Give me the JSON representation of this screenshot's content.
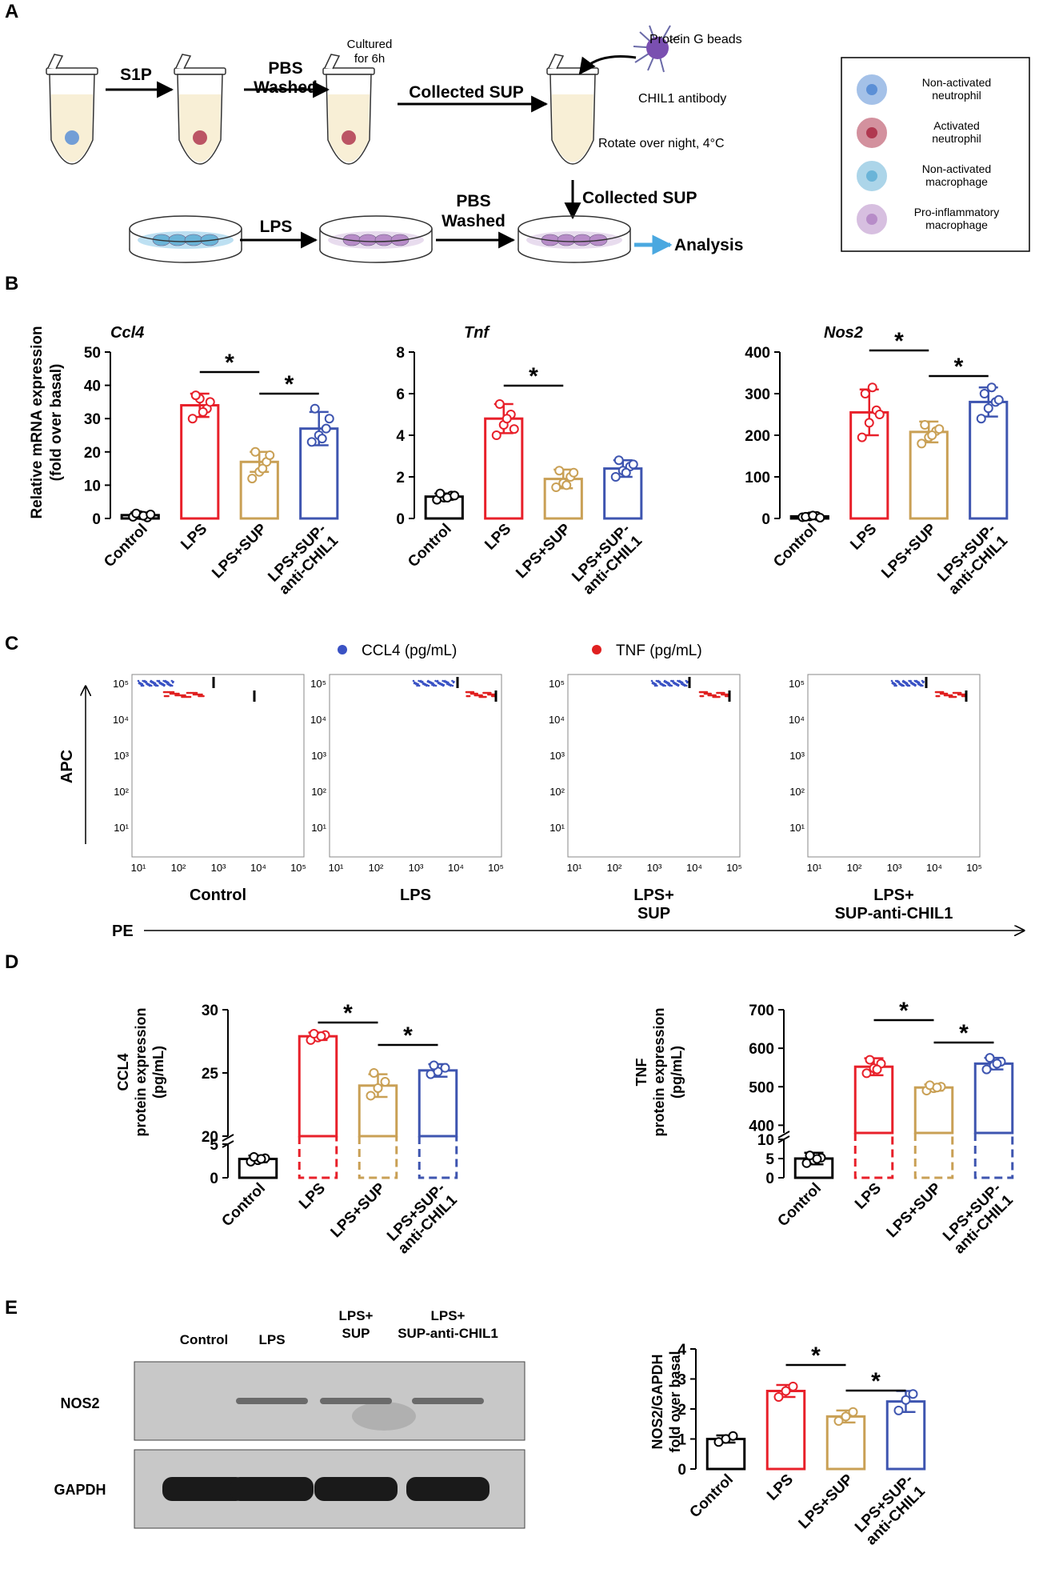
{
  "panels": {
    "A": {
      "letter": "A",
      "steps": {
        "s1p": "S1P",
        "pbs_washed_1a": "PBS",
        "pbs_washed_1b": "Washed",
        "cultured_a": "Cultured",
        "cultured_b": "for 6h",
        "collected_sup_1": "Collected SUP",
        "protein_g_beads": "Protein G beads",
        "chil1_antibody": "CHIL1 antibody",
        "rotate": "Rotate over night, 4°C",
        "collected_sup_2": "Collected SUP",
        "lps": "LPS",
        "pbs_washed_2a": "PBS",
        "pbs_washed_2b": "Washed",
        "analysis": "Analysis"
      },
      "legend": [
        {
          "line1": "Non-activated",
          "line2": "neutrophil",
          "color": "#5b8fd6"
        },
        {
          "line1": "Activated",
          "line2": "neutrophil",
          "color": "#b03850"
        },
        {
          "line1": "Non-activated",
          "line2": "macrophage",
          "color": "#6ab4d8"
        },
        {
          "line1": "Pro-inflammatory",
          "line2": "macrophage",
          "color": "#b78cc8"
        }
      ]
    },
    "B": {
      "letter": "B",
      "y_label_1": "Relative mRNA expression",
      "y_label_2": "(fold over basal)"
    },
    "C": {
      "letter": "C",
      "legend_ccl4": "CCL4 (pg/mL)",
      "legend_tnf": "TNF (pg/mL)",
      "y_axis": "APC",
      "x_axis": "PE",
      "tick_labels": [
        "10⁵",
        "10⁴",
        "10³",
        "10²",
        "10¹"
      ],
      "x_tick_labels": [
        "10¹",
        "10²",
        "10³",
        "10⁴",
        "10⁵"
      ],
      "plot_labels": [
        [
          "Control",
          ""
        ],
        [
          "LPS",
          ""
        ],
        [
          "LPS+",
          "SUP"
        ],
        [
          "LPS+",
          "SUP-anti-CHIL1"
        ]
      ]
    },
    "D": {
      "letter": "D",
      "ccl4_y_1": "CCL4",
      "ccl4_y_2": "protein expression",
      "ccl4_y_3": "(pg/mL)",
      "tnf_y_1": "TNF",
      "tnf_y_2": "protein expression",
      "tnf_y_3": "(pg/mL)"
    },
    "E": {
      "letter": "E",
      "blot_lanes": [
        [
          "Control",
          ""
        ],
        [
          "LPS",
          ""
        ],
        [
          "LPS+",
          "SUP"
        ],
        [
          "LPS+",
          "SUP-anti-CHIL1"
        ]
      ],
      "blot_rows": [
        "NOS2",
        "GAPDH"
      ],
      "y_label_1": "NOS2/GAPDH",
      "y_label_2": "fold over basal"
    }
  },
  "colors": {
    "control": "#000000",
    "lps": "#e8202a",
    "lps_sup": "#c9a055",
    "lps_sup_anti": "#3e55b0",
    "ccl4_dots": "#3a52c4",
    "tnf_dots": "#e02020",
    "arrow_blue": "#4aa8e0"
  },
  "chart_data": [
    {
      "id": "ccl4",
      "type": "bar",
      "title": "Ccl4",
      "ylabel": "Relative mRNA expression (fold over basal)",
      "categories": [
        "Control",
        "LPS",
        "LPS+SUP",
        "LPS+SUP-anti-CHIL1"
      ],
      "values": [
        1,
        34,
        17,
        27
      ],
      "errors": [
        0.8,
        3.5,
        3,
        5
      ],
      "ylim": [
        0,
        50
      ],
      "ticks": [
        0,
        10,
        20,
        30,
        40,
        50
      ],
      "points": [
        [
          0.5,
          1,
          0.3,
          1.5,
          0.8,
          1.2
        ],
        [
          30,
          36,
          33,
          37,
          32,
          35
        ],
        [
          12,
          14,
          17,
          20,
          15,
          19
        ],
        [
          23,
          25,
          27,
          33,
          24,
          30
        ]
      ],
      "significance": [
        [
          1,
          2
        ],
        [
          2,
          3
        ]
      ],
      "sig_label": "*"
    },
    {
      "id": "tnf",
      "type": "bar",
      "title": "Tnf",
      "ylabel": "Relative mRNA expression (fold over basal)",
      "categories": [
        "Control",
        "LPS",
        "LPS+SUP",
        "LPS+SUP-anti-CHIL1"
      ],
      "values": [
        1.05,
        4.8,
        1.9,
        2.4
      ],
      "errors": [
        0.15,
        0.7,
        0.45,
        0.4
      ],
      "ylim": [
        0,
        8
      ],
      "ticks": [
        0,
        2,
        4,
        6,
        8
      ],
      "points": [
        [
          0.9,
          1.0,
          1.1,
          1.2,
          1.0,
          1.1
        ],
        [
          4.0,
          4.5,
          5.0,
          5.5,
          4.8,
          4.3
        ],
        [
          1.5,
          1.7,
          2.0,
          2.3,
          1.6,
          2.2
        ],
        [
          2.0,
          2.3,
          2.5,
          2.8,
          2.2,
          2.6
        ]
      ],
      "significance": [
        [
          1,
          2
        ]
      ],
      "sig_label": "*"
    },
    {
      "id": "nos2",
      "type": "bar",
      "title": "Nos2",
      "ylabel": "Relative mRNA expression (fold over basal)",
      "categories": [
        "Control",
        "LPS",
        "LPS+SUP",
        "LPS+SUP-anti-CHIL1"
      ],
      "values": [
        5,
        255,
        208,
        280
      ],
      "errors": [
        4,
        55,
        25,
        35
      ],
      "ylim": [
        0,
        400
      ],
      "ticks": [
        0,
        100,
        200,
        300,
        400
      ],
      "points": [
        [
          3,
          5,
          6,
          4,
          7,
          2
        ],
        [
          195,
          230,
          260,
          300,
          315,
          250
        ],
        [
          180,
          195,
          210,
          225,
          200,
          215
        ],
        [
          240,
          265,
          280,
          300,
          315,
          285
        ]
      ],
      "significance": [
        [
          1,
          2
        ],
        [
          2,
          3
        ]
      ],
      "sig_label": "*"
    },
    {
      "id": "ccl4_protein",
      "type": "bar",
      "title": "",
      "ylabel": "CCL4 protein expression (pg/mL)",
      "categories": [
        "Control",
        "LPS",
        "LPS+SUP",
        "LPS+SUP-anti-CHIL1"
      ],
      "values": [
        2.8,
        27.9,
        24.0,
        25.2
      ],
      "errors": [
        0.5,
        0.3,
        0.9,
        0.5
      ],
      "ylim": [
        0,
        30
      ],
      "axis_break": {
        "low_max": 5,
        "high_min": 20
      },
      "ticks_low": [
        0,
        5
      ],
      "ticks_high": [
        20,
        25,
        30
      ],
      "points": [
        [
          2.4,
          2.6,
          2.9,
          3.1,
          2.8
        ],
        [
          27.6,
          27.8,
          28.0,
          28.1,
          27.9
        ],
        [
          23.2,
          23.8,
          24.3,
          25.0
        ],
        [
          24.9,
          25.1,
          25.4,
          25.6
        ]
      ],
      "significance": [
        [
          1,
          2
        ],
        [
          2,
          3
        ]
      ],
      "sig_label": "*"
    },
    {
      "id": "tnf_protein",
      "type": "bar",
      "title": "",
      "ylabel": "TNF protein expression (pg/mL)",
      "categories": [
        "Control",
        "LPS",
        "LPS+SUP",
        "LPS+SUP-anti-CHIL1"
      ],
      "values": [
        5,
        552,
        498,
        560
      ],
      "errors": [
        1.5,
        22,
        8,
        15
      ],
      "ylim": [
        0,
        700
      ],
      "axis_break": {
        "low_max": 10,
        "high_min": 380
      },
      "ticks_low": [
        0,
        5,
        10
      ],
      "ticks_high": [
        400,
        500,
        600,
        700
      ],
      "points": [
        [
          3.8,
          4.5,
          5.2,
          5.8,
          4.9
        ],
        [
          535,
          548,
          560,
          570,
          545
        ],
        [
          490,
          496,
          500,
          504,
          498
        ],
        [
          545,
          555,
          565,
          575,
          560
        ]
      ],
      "significance": [
        [
          1,
          2
        ],
        [
          2,
          3
        ]
      ],
      "sig_label": "*"
    },
    {
      "id": "nos2_gapdh",
      "type": "bar",
      "title": "",
      "ylabel": "NOS2/GAPDH fold over basal",
      "categories": [
        "Control",
        "LPS",
        "LPS+SUP",
        "LPS+SUP-anti-CHIL1"
      ],
      "values": [
        1.0,
        2.6,
        1.75,
        2.25
      ],
      "errors": [
        0.12,
        0.2,
        0.2,
        0.35
      ],
      "ylim": [
        0,
        4
      ],
      "ticks": [
        0,
        1,
        2,
        3,
        4
      ],
      "points": [
        [
          0.9,
          1.0,
          1.1
        ],
        [
          2.4,
          2.6,
          2.75
        ],
        [
          1.6,
          1.75,
          1.9
        ],
        [
          1.95,
          2.3,
          2.5
        ]
      ],
      "significance": [
        [
          1,
          2
        ],
        [
          2,
          3
        ]
      ],
      "sig_label": "*"
    }
  ]
}
